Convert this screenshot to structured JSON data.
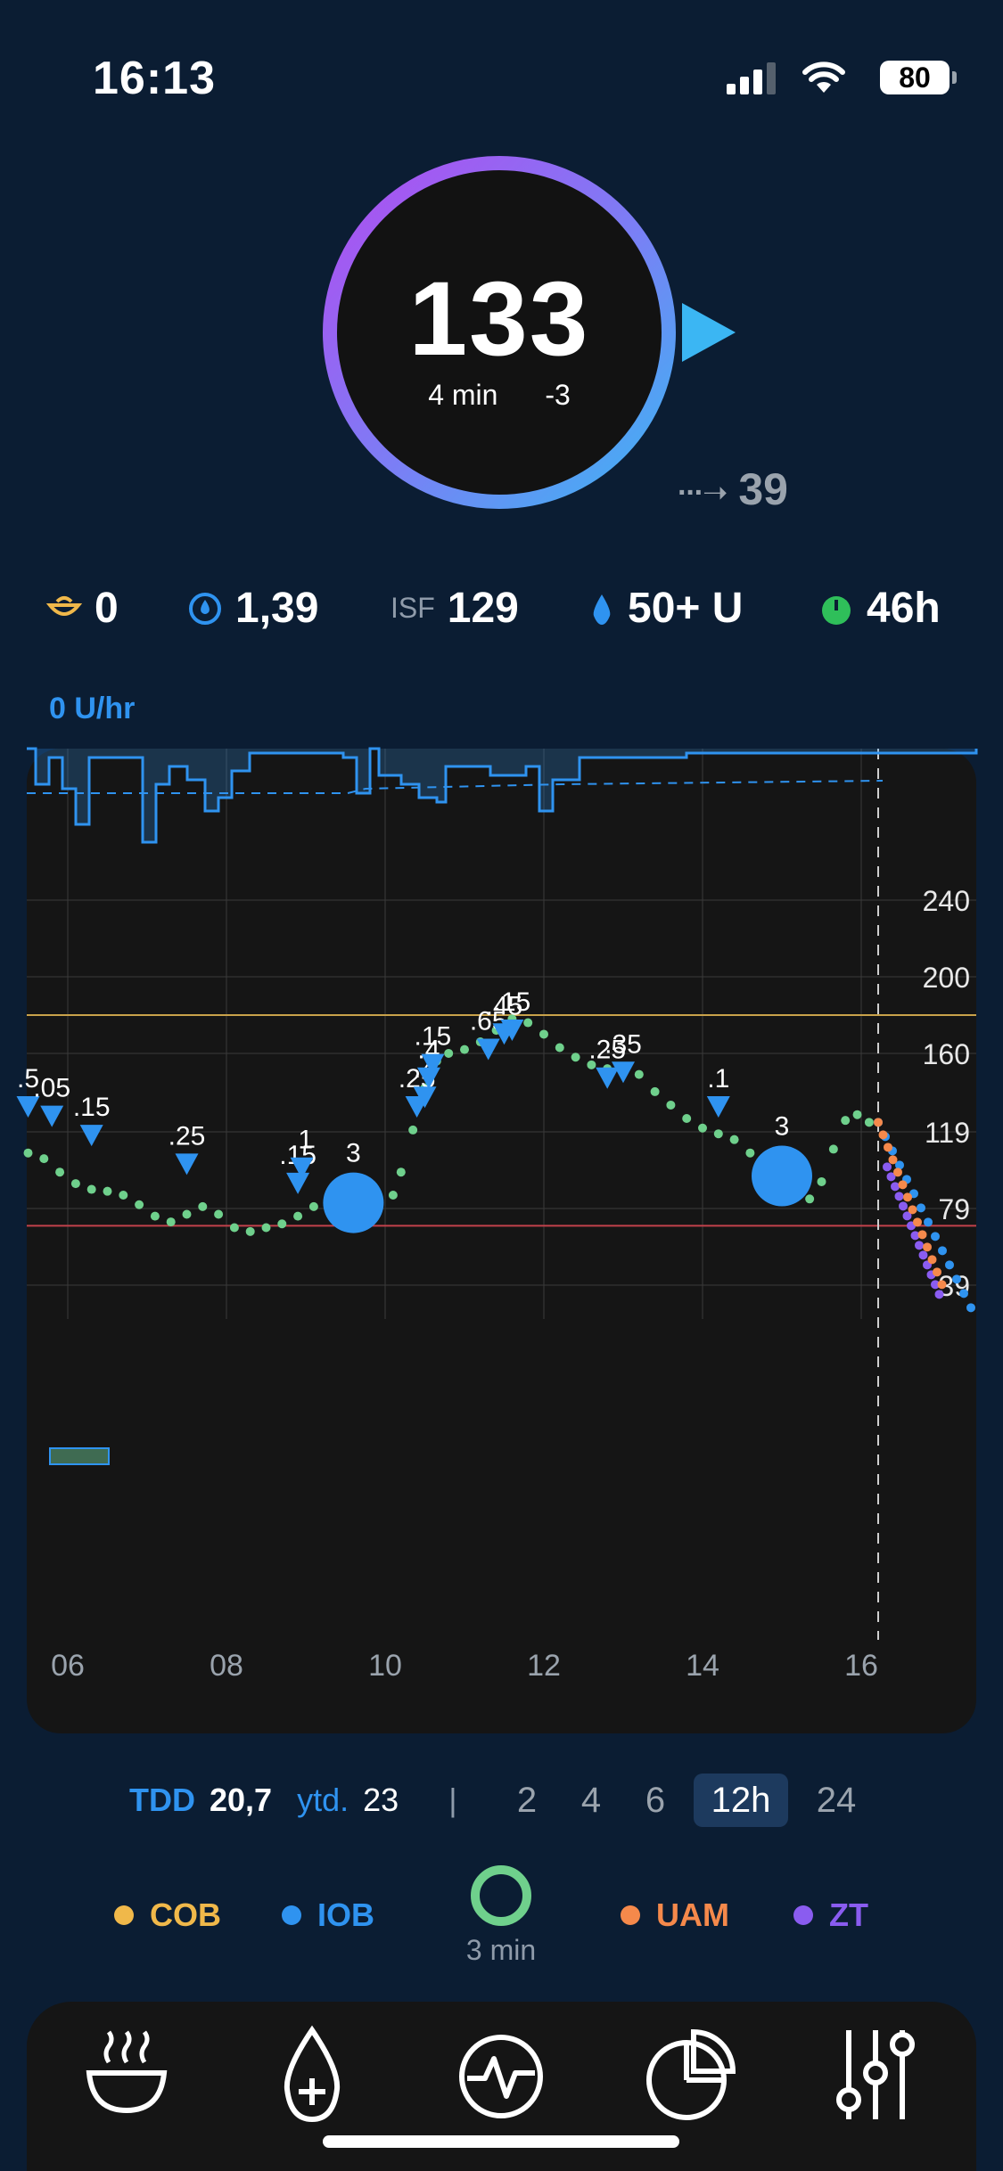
{
  "status_bar": {
    "time": "16:13",
    "battery": "80"
  },
  "glucose": {
    "value": "133",
    "age": "4 min",
    "delta": "-3",
    "eventual": "39"
  },
  "info": {
    "cob": "0",
    "iob": "1,39",
    "isf_label": "ISF",
    "isf": "129",
    "reservoir": "50+ U",
    "sensor_age": "46h"
  },
  "basal_rate": "0  U/hr",
  "chart_data": {
    "type": "line",
    "x_ticks": [
      "06",
      "08",
      "10",
      "12",
      "14",
      "16"
    ],
    "y_ticks": [
      "240",
      "200",
      "160",
      "119",
      "79",
      "39"
    ],
    "target_high": 180,
    "target_low": 70,
    "bolus_labels": [
      ".5",
      ".05",
      ".15",
      ".25",
      ".15",
      ".1",
      ".25",
      ".4",
      ".4",
      ".15",
      ".65",
      ".45",
      ".15",
      ".25",
      ".35",
      ".1"
    ],
    "carb_labels": [
      "3",
      "3"
    ],
    "colors": {
      "glucose": "#6fd08c",
      "iob": "#2f93f0",
      "uam": "#f5894b",
      "zt": "#8a5cf0",
      "target_high": "#c9a24a",
      "target_low": "#c2414b"
    }
  },
  "tdd": {
    "label": "TDD",
    "value": "20,7",
    "ytd_label": "ytd.",
    "ytd": "23",
    "sep": "|"
  },
  "timeframes": [
    "2",
    "4",
    "6",
    "12h",
    "24"
  ],
  "selected_timeframe": "12h",
  "legend": {
    "cob": "COB",
    "iob": "IOB",
    "uam": "UAM",
    "zt": "ZT",
    "loop_age": "3 min"
  },
  "tabs": [
    "meal-icon",
    "bolus-icon",
    "activity-icon",
    "stats-icon",
    "settings-icon"
  ]
}
